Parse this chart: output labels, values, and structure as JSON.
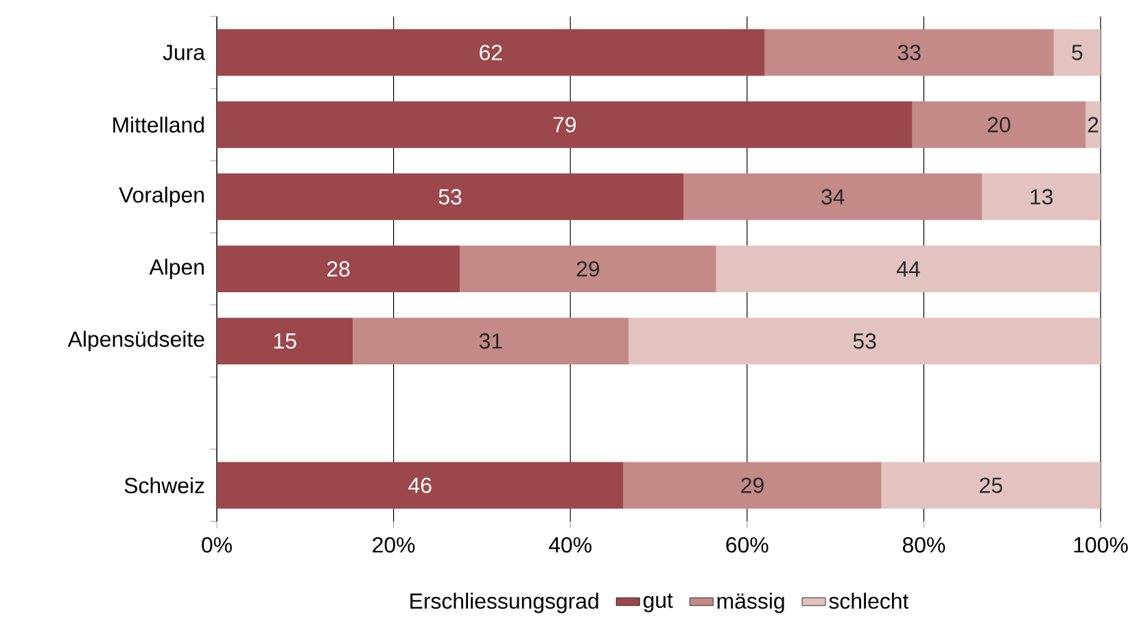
{
  "chart_data": {
    "type": "bar",
    "orientation": "horizontal",
    "stacked": true,
    "categories": [
      "Jura",
      "Mittelland",
      "Voralpen",
      "Alpen",
      "Alpensüdseite",
      null,
      "Schweiz"
    ],
    "series": [
      {
        "name": "gut",
        "color": "#9b474b",
        "values": [
          62.0,
          78.7,
          52.8,
          27.5,
          15.4,
          null,
          46.0
        ],
        "value_labels": [
          "62",
          "79",
          "53",
          "28",
          "15",
          null,
          "46"
        ]
      },
      {
        "name": "mässig",
        "color": "#c48a87",
        "values": [
          32.7,
          19.6,
          33.8,
          29.0,
          31.2,
          null,
          29.2
        ],
        "value_labels": [
          "33",
          "20",
          "34",
          "29",
          "31",
          null,
          "29"
        ]
      },
      {
        "name": "schlecht",
        "color": "#e2c3c0",
        "values": [
          5.3,
          1.7,
          13.4,
          43.5,
          53.4,
          null,
          24.8
        ],
        "value_labels": [
          "5",
          "2",
          "13",
          "44",
          "53",
          null,
          "25"
        ]
      }
    ],
    "xlim": [
      0,
      100
    ],
    "xticks": [
      {
        "value": 0,
        "label": "0%"
      },
      {
        "value": 20,
        "label": "20%"
      },
      {
        "value": 40,
        "label": "40%"
      },
      {
        "value": 60,
        "label": "60%"
      },
      {
        "value": 80,
        "label": "80%"
      },
      {
        "value": 100,
        "label": "100%"
      }
    ],
    "grid": "x",
    "legend": "bottom",
    "legend_title": "Erschliessungsgrad"
  }
}
